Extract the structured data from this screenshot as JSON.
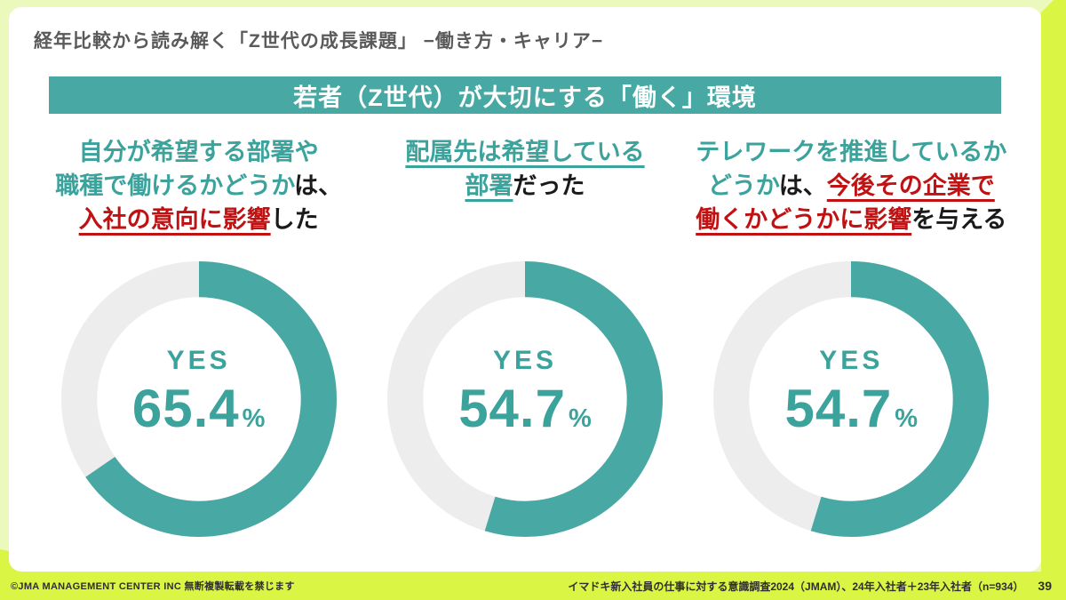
{
  "slide": {
    "header_title": "経年比較から読み解く「Z世代の成長課題」 −働き方・キャリア−",
    "banner_title": "若者（Z世代）が大切にする「働く」環境"
  },
  "colors": {
    "teal": "#48A8A3",
    "teal_text": "#3BA29C",
    "red": "#C01212",
    "black": "#1A1A1A",
    "ring_gray": "#EDEDED",
    "pale_lime": "#EBF9BC",
    "bright_lime": "#DBF544"
  },
  "charts": [
    {
      "heading_lines": [
        [
          {
            "text": "自分が希望する部署や",
            "style": "teal"
          }
        ],
        [
          {
            "text": "職種で働けるかどうか",
            "style": "teal"
          },
          {
            "text": "は、",
            "style": "black"
          }
        ],
        [
          {
            "text": "入社の意向に影響",
            "style": "red",
            "underline": true
          },
          {
            "text": "した",
            "style": "black"
          }
        ]
      ],
      "label": "YES",
      "value": 65.4,
      "value_text": "65.4",
      "unit": "%"
    },
    {
      "heading_lines": [
        [
          {
            "text": "配属先は希望している",
            "style": "teal",
            "underline": true
          }
        ],
        [
          {
            "text": "部署",
            "style": "teal",
            "underline": true
          },
          {
            "text": "だった",
            "style": "black"
          }
        ]
      ],
      "label": "YES",
      "value": 54.7,
      "value_text": "54.7",
      "unit": "%"
    },
    {
      "heading_lines": [
        [
          {
            "text": "テレワークを推進しているか",
            "style": "teal"
          }
        ],
        [
          {
            "text": "どうか",
            "style": "teal"
          },
          {
            "text": "は、",
            "style": "black"
          },
          {
            "text": "今後その企業で",
            "style": "red",
            "underline": true
          }
        ],
        [
          {
            "text": "働くかどうかに影響",
            "style": "red",
            "underline": true
          },
          {
            "text": "を与える",
            "style": "black"
          }
        ]
      ],
      "label": "YES",
      "value": 54.7,
      "value_text": "54.7",
      "unit": "%"
    }
  ],
  "chart_data": [
    {
      "type": "pie",
      "subtype": "donut",
      "title": "自分が希望する部署や職種で働けるかどうかは、入社の意向に影響した",
      "labels": [
        "YES",
        "remainder"
      ],
      "values": [
        65.4,
        34.6
      ],
      "unit": "%",
      "center_label": "YES 65.4%",
      "colors": [
        "#48A8A3",
        "#EDEDED"
      ],
      "start_angle_deg": 0,
      "direction": "clockwise"
    },
    {
      "type": "pie",
      "subtype": "donut",
      "title": "配属先は希望している部署だった",
      "labels": [
        "YES",
        "remainder"
      ],
      "values": [
        54.7,
        45.3
      ],
      "unit": "%",
      "center_label": "YES 54.7%",
      "colors": [
        "#48A8A3",
        "#EDEDED"
      ],
      "start_angle_deg": 0,
      "direction": "clockwise"
    },
    {
      "type": "pie",
      "subtype": "donut",
      "title": "テレワークを推進しているかどうかは、今後その企業で働くかどうかに影響を与える",
      "labels": [
        "YES",
        "remainder"
      ],
      "values": [
        54.7,
        45.3
      ],
      "unit": "%",
      "center_label": "YES 54.7%",
      "colors": [
        "#48A8A3",
        "#EDEDED"
      ],
      "start_angle_deg": 0,
      "direction": "clockwise"
    }
  ],
  "footer": {
    "left": "©JMA MANAGEMENT CENTER INC  無断複製転載を禁じます",
    "right": "イマドキ新入社員の仕事に対する意識調査2024（JMAM）、24年入社者＋23年入社者（n=934）",
    "page_number": "39"
  }
}
